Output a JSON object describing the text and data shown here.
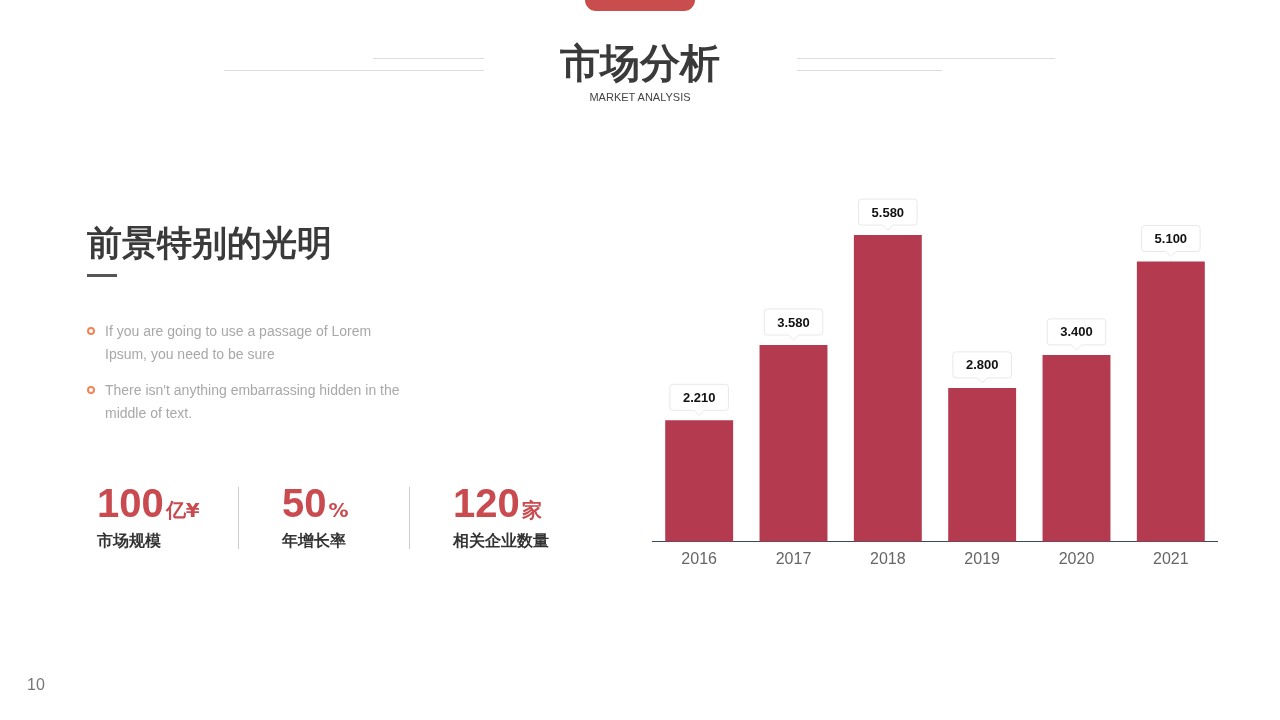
{
  "chart_data": {
    "type": "bar",
    "title": "市场分析",
    "subtitle": "MARKET ANALYSIS",
    "categories": [
      "2016",
      "2017",
      "2018",
      "2019",
      "2020",
      "2021"
    ],
    "values": [
      2.21,
      3.58,
      5.58,
      2.8,
      3.4,
      5.1
    ],
    "value_labels": [
      "2.210",
      "3.580",
      "5.580",
      "2.800",
      "3.400",
      "5.100"
    ],
    "color": "#b43a4f",
    "tick_labels": "x",
    "annotations": [
      "前景特别的光明",
      "If you are going to use a passage of Lorem Ipsum, you need to be sure",
      "There isn't anything embarrassing hidden in the middle of text.",
      "100亿¥",
      "市场规模",
      "50%",
      "年增长率",
      "120家",
      "相关企业数量",
      "10"
    ]
  }
}
